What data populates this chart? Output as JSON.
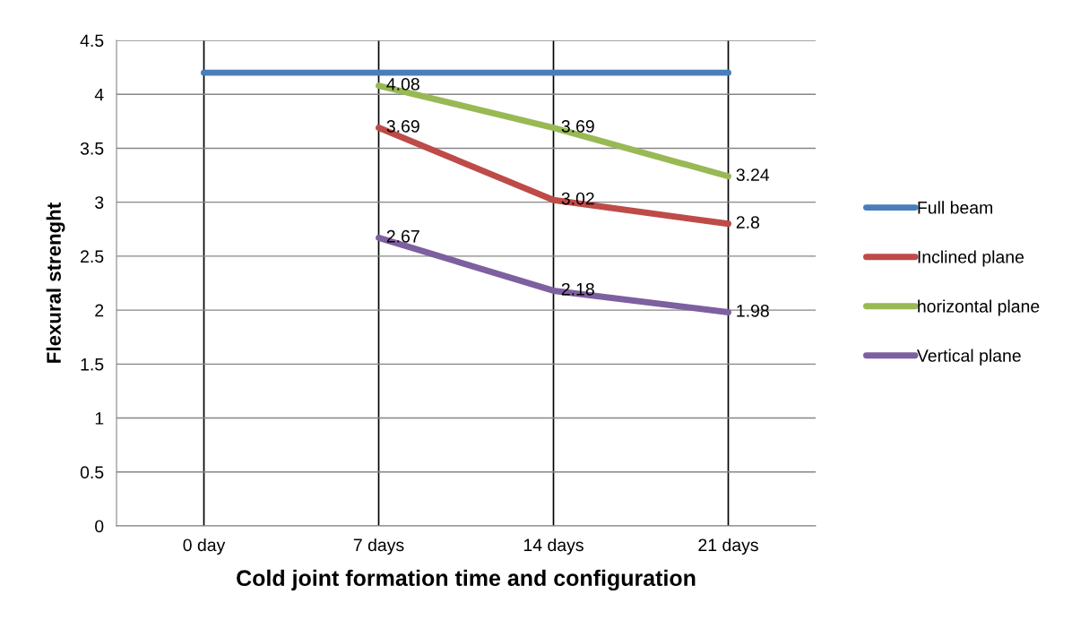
{
  "chart_data": {
    "type": "line",
    "xlabel": "Cold joint formation time and configuration",
    "ylabel": "Flexural strenght",
    "categories": [
      "0 day",
      "7 days",
      "14 days",
      "21 days"
    ],
    "series": [
      {
        "name": "Full beam",
        "color": "#4a7ebb",
        "values": [
          4.2,
          4.2,
          4.2,
          4.2
        ]
      },
      {
        "name": "Inclined plane",
        "color": "#be4b48",
        "values": [
          null,
          3.69,
          3.02,
          2.8
        ],
        "value_labels": [
          null,
          "3.69",
          "3.02",
          "2.8"
        ]
      },
      {
        "name": "horizontal plane",
        "color": "#98b954",
        "values": [
          null,
          4.08,
          3.69,
          3.24
        ],
        "value_labels": [
          null,
          "4.08",
          "3.69",
          "3.24"
        ]
      },
      {
        "name": "Vertical plane",
        "color": "#7d60a0",
        "values": [
          null,
          2.67,
          2.18,
          1.98
        ],
        "value_labels": [
          null,
          "2.67",
          "2.18",
          "1.98"
        ]
      }
    ],
    "ylim": [
      0,
      4.5
    ],
    "yticks": [
      0,
      0.5,
      1,
      1.5,
      2,
      2.5,
      3,
      3.5,
      4,
      4.5
    ],
    "grid": true,
    "legend": "right",
    "marker": "none",
    "line_style": "solid"
  }
}
